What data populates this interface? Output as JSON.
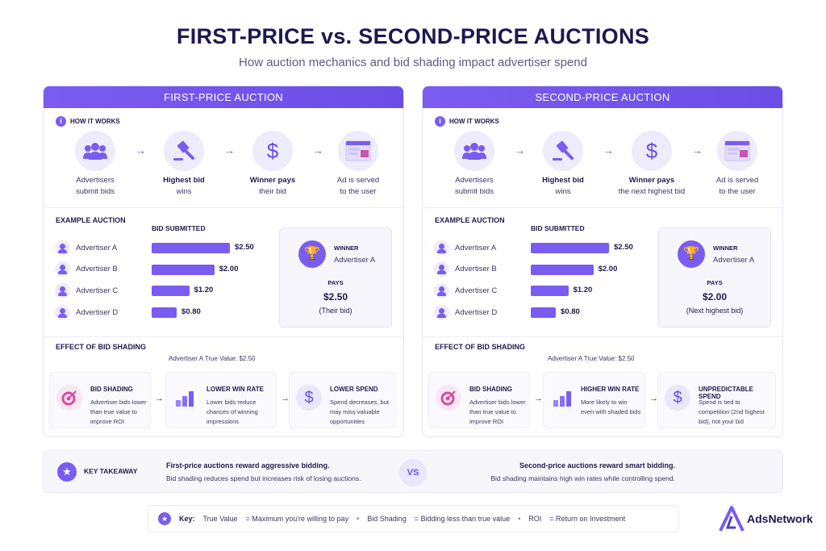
{
  "title": "FIRST-PRICE vs. SECOND-PRICE AUCTIONS",
  "subtitle": "How auction mechanics and bid shading impact advertiser spend",
  "colors": {
    "accent": "#7b5cf0",
    "pink": "#d04ea0"
  },
  "panels": [
    {
      "header": "FIRST-PRICE AUCTION",
      "how_label": "HOW IT WORKS",
      "steps": [
        {
          "icon": "users-icon",
          "l1": "Advertisers",
          "l2": "submit bids",
          "bold": false
        },
        {
          "icon": "gavel-icon",
          "l1": "Highest bid",
          "l2": "wins",
          "bold": true
        },
        {
          "icon": "dollar-icon",
          "l1": "Winner pays",
          "l2": "their bid",
          "bold": true
        },
        {
          "icon": "ad-window-icon",
          "l1": "Ad is served",
          "l2": "to the user",
          "bold": false
        }
      ],
      "example_label": "EXAMPLE AUCTION",
      "bid_label": "BID SUBMITTED",
      "bids": [
        {
          "name": "Advertiser A",
          "value": 2.5,
          "label": "$2.50"
        },
        {
          "name": "Advertiser B",
          "value": 2.0,
          "label": "$2.00"
        },
        {
          "name": "Advertiser C",
          "value": 1.2,
          "label": "$1.20"
        },
        {
          "name": "Advertiser D",
          "value": 0.8,
          "label": "$0.80"
        }
      ],
      "winner_label": "WINNER",
      "winner": "Advertiser A",
      "pays_label": "PAYS",
      "pays": "$2.50",
      "pays_note": "(Their bid)",
      "effect_label": "EFFECT OF BID SHADING",
      "true_value": "Advertiser A True Value: $2.50",
      "cards": [
        {
          "icon": "target-icon",
          "title": "BID SHADING",
          "text": "Advertiser bids lower than true value to improve ROI"
        },
        {
          "icon": "bar-chart-icon",
          "title": "LOWER WIN RATE",
          "text": "Lower bids reduce chances of winning impressions"
        },
        {
          "icon": "dollar-icon",
          "title": "LOWER SPEND",
          "text": "Spend decreases, but may miss valuable opportunities"
        }
      ]
    },
    {
      "header": "SECOND-PRICE AUCTION",
      "how_label": "HOW IT WORKS",
      "steps": [
        {
          "icon": "users-icon",
          "l1": "Advertisers",
          "l2": "submit bids",
          "bold": false
        },
        {
          "icon": "gavel-icon",
          "l1": "Highest bid",
          "l2": "wins",
          "bold": true
        },
        {
          "icon": "dollar-icon",
          "l1": "Winner pays",
          "l2": "the next highest bid",
          "bold": true
        },
        {
          "icon": "ad-window-icon",
          "l1": "Ad is served",
          "l2": "to the user",
          "bold": false
        }
      ],
      "example_label": "EXAMPLE AUCTION",
      "bid_label": "BID SUBMITTED",
      "bids": [
        {
          "name": "Advertiser A",
          "value": 2.5,
          "label": "$2.50"
        },
        {
          "name": "Advertiser B",
          "value": 2.0,
          "label": "$2.00"
        },
        {
          "name": "Advertiser C",
          "value": 1.2,
          "label": "$1.20"
        },
        {
          "name": "Advertiser D",
          "value": 0.8,
          "label": "$0.80"
        }
      ],
      "winner_label": "WINNER",
      "winner": "Advertiser A",
      "pays_label": "PAYS",
      "pays": "$2.00",
      "pays_note": "(Next highest bid)",
      "effect_label": "EFFECT OF BID SHADING",
      "true_value": "Advertiser A True Value: $2.50",
      "cards": [
        {
          "icon": "target-icon",
          "title": "BID SHADING",
          "text": "Advertiser bids lower than true value to improve ROI"
        },
        {
          "icon": "bar-chart-icon",
          "title": "HIGHER WIN RATE",
          "text": "More likely to win even with shaded bids"
        },
        {
          "icon": "dollar-icon",
          "title": "UNPREDICTABLE SPEND",
          "text": "Spend is tied to competition (2nd highest bid), not your bid"
        }
      ]
    }
  ],
  "takeaway": {
    "label": "KEY TAKEAWAY",
    "left_bold": "First-price auctions reward aggressive bidding.",
    "left_text": "Bid shading reduces spend but increases risk of losing auctions.",
    "vs": "VS",
    "right_bold": "Second-price auctions reward smart bidding.",
    "right_text": "Bid shading maintains high win rates while controlling spend."
  },
  "key": {
    "label": "Key:",
    "items": [
      {
        "term": "True Value",
        "def": "= Maximum you're willing to pay"
      },
      {
        "term": "Bid Shading",
        "def": "= Bidding less than true value"
      },
      {
        "term": "ROI",
        "def": "= Return on Investment"
      }
    ]
  },
  "logo": "AdsNetwork"
}
